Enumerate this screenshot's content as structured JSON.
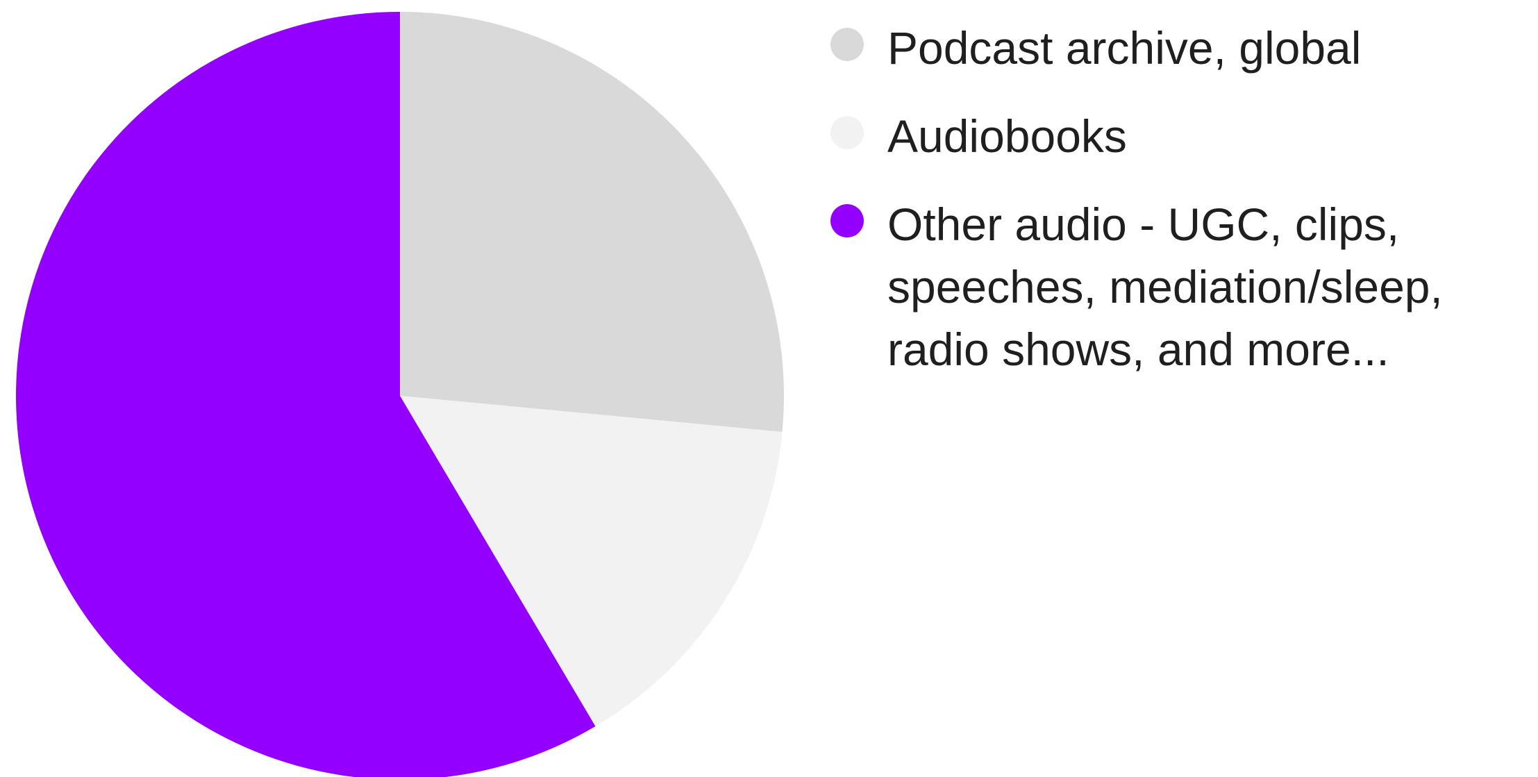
{
  "chart_data": {
    "type": "pie",
    "legend_position": "right",
    "slices": [
      {
        "label": "Podcast archive, global",
        "value": 26.5,
        "color": "#d9d9d9"
      },
      {
        "label": "Audiobooks",
        "value": 15.0,
        "color": "#f2f2f2"
      },
      {
        "label": "Other audio - UGC, clips, speeches, mediation/sleep, radio shows, and more...",
        "value": 58.5,
        "color": "#9400ff"
      }
    ]
  }
}
